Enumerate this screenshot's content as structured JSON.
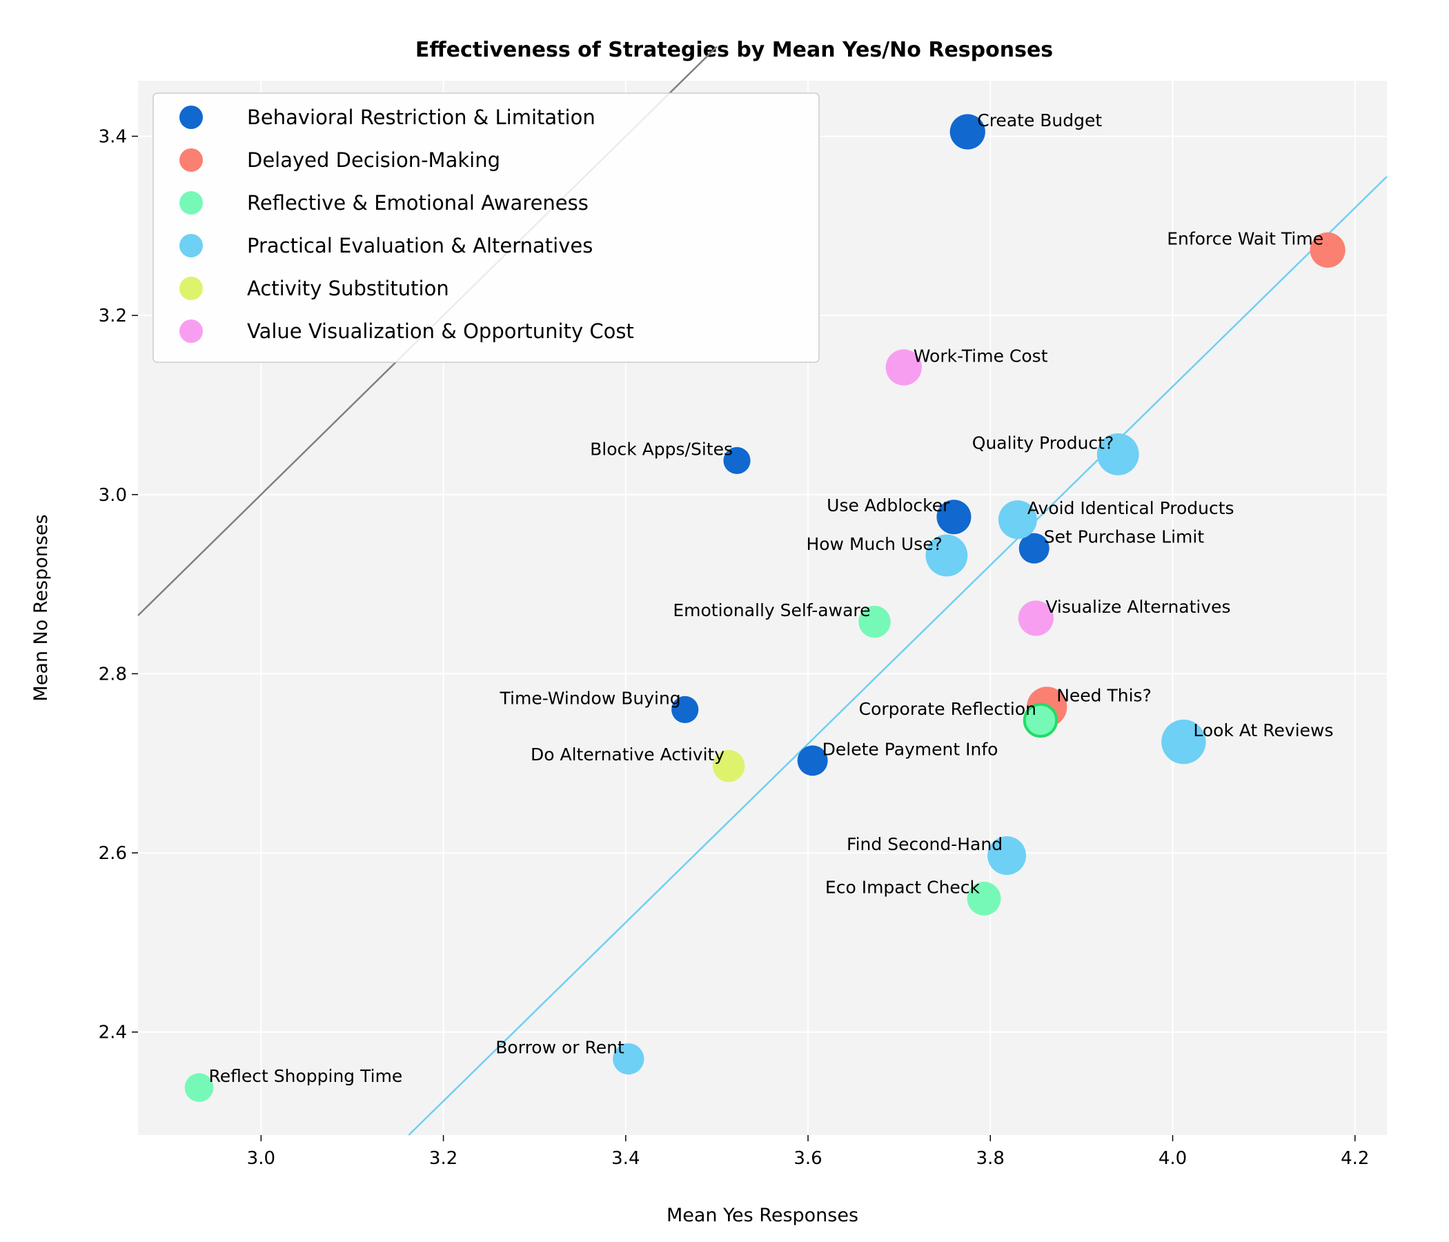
{
  "chart_data": {
    "type": "scatter",
    "title": "Effectiveness of Strategies by Mean Yes/No Responses",
    "xlabel": "Mean Yes Responses",
    "ylabel": "Mean No Responses",
    "xlim": [
      2.865,
      4.235
    ],
    "ylim": [
      2.285,
      3.462
    ],
    "xticks": [
      "3.0",
      "3.2",
      "3.4",
      "3.6",
      "3.8",
      "4.0",
      "4.2"
    ],
    "yticks": [
      "2.4",
      "2.6",
      "2.8",
      "3.0",
      "3.2",
      "3.4"
    ],
    "grid": true,
    "legend_position": "upper-left",
    "reference_lines": [
      {
        "color": "#808080",
        "points": [
          [
            2.865,
            2.865
          ],
          [
            3.5,
            3.5
          ]
        ]
      },
      {
        "color": "#6fcff3",
        "points": [
          [
            3.162,
            2.285
          ],
          [
            4.235,
            3.355
          ]
        ]
      }
    ],
    "series": [
      {
        "name": "Behavioral Restriction & Limitation",
        "color": "#1168cf",
        "points": [
          {
            "label": "Create Budget",
            "x": 3.775,
            "y": 3.405,
            "size": 0.8,
            "label_anchor": "right"
          },
          {
            "label": "Block Apps/Sites",
            "x": 3.522,
            "y": 3.038,
            "size": 0.3,
            "label_anchor": "left"
          },
          {
            "label": "Use Adblocker",
            "x": 3.76,
            "y": 2.975,
            "size": 0.75,
            "label_anchor": "left"
          },
          {
            "label": "Set Purchase Limit",
            "x": 3.848,
            "y": 2.94,
            "size": 0.5,
            "label_anchor": "right"
          },
          {
            "label": "Time-Window Buying",
            "x": 3.465,
            "y": 2.76,
            "size": 0.3,
            "label_anchor": "left"
          },
          {
            "label": "Delete Payment Info",
            "x": 3.605,
            "y": 2.703,
            "size": 0.5,
            "label_anchor": "right"
          }
        ]
      },
      {
        "name": "Delayed Decision-Making",
        "color": "#fa8072",
        "points": [
          {
            "label": "Enforce Wait Time",
            "x": 4.17,
            "y": 3.273,
            "size": 0.8,
            "label_anchor": "left"
          },
          {
            "label": "Need This?",
            "x": 3.862,
            "y": 2.763,
            "size": 1.1,
            "label_anchor": "right"
          }
        ]
      },
      {
        "name": "Reflective & Emotional Awareness",
        "color": "#76f9b7",
        "points": [
          {
            "label": "Emotionally Self-aware",
            "x": 3.673,
            "y": 2.858,
            "size": 0.6,
            "label_anchor": "left"
          },
          {
            "label": "Corporate Reflection",
            "x": 3.855,
            "y": 2.748,
            "size": 0.6,
            "label_anchor": "left",
            "edge": "#22dd66"
          },
          {
            "label": "Eco Impact Check",
            "x": 3.793,
            "y": 2.549,
            "size": 0.7,
            "label_anchor": "left"
          },
          {
            "label": "Reflect Shopping Time",
            "x": 2.932,
            "y": 2.338,
            "size": 0.4,
            "label_anchor": "right"
          }
        ]
      },
      {
        "name": "Practical Evaluation & Alternatives",
        "color": "#6ed0f4",
        "points": [
          {
            "label": "Quality Product?",
            "x": 3.94,
            "y": 3.045,
            "size": 1.2,
            "label_anchor": "left"
          },
          {
            "label": "Avoid Identical Products",
            "x": 3.83,
            "y": 2.972,
            "size": 1.0,
            "label_anchor": "right"
          },
          {
            "label": "How Much Use?",
            "x": 3.752,
            "y": 2.932,
            "size": 1.2,
            "label_anchor": "left"
          },
          {
            "label": "Look At Reviews",
            "x": 4.012,
            "y": 2.724,
            "size": 1.35,
            "label_anchor": "right"
          },
          {
            "label": "Find Second-Hand",
            "x": 3.818,
            "y": 2.597,
            "size": 1.0,
            "label_anchor": "left"
          },
          {
            "label": "Borrow or Rent",
            "x": 3.403,
            "y": 2.37,
            "size": 0.55,
            "label_anchor": "left"
          }
        ]
      },
      {
        "name": "Activity Substitution",
        "color": "#def26c",
        "points": [
          {
            "label": "Do Alternative Activity",
            "x": 3.513,
            "y": 2.697,
            "size": 0.6,
            "label_anchor": "left"
          }
        ]
      },
      {
        "name": "Value Visualization & Opportunity Cost",
        "color": "#f89ef1",
        "points": [
          {
            "label": "Work-Time Cost",
            "x": 3.705,
            "y": 3.142,
            "size": 0.85,
            "label_anchor": "right"
          },
          {
            "label": "Visualize Alternatives",
            "x": 3.85,
            "y": 2.862,
            "size": 0.8,
            "label_anchor": "right"
          }
        ]
      }
    ]
  }
}
